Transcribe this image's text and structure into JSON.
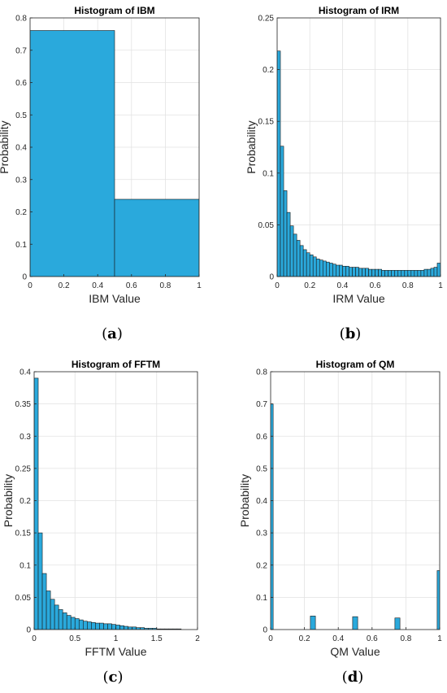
{
  "chart_data": [
    {
      "type": "bar",
      "title": "Histogram of IBM",
      "xlabel": "IBM Value",
      "ylabel": "Probability",
      "xlim": [
        0,
        1
      ],
      "ylim": [
        0,
        0.8
      ],
      "xticks": [
        "0",
        "0.2",
        "0.4",
        "0.6",
        "0.8",
        "1"
      ],
      "yticks": [
        "0",
        "0.1",
        "0.2",
        "0.3",
        "0.4",
        "0.5",
        "0.6",
        "0.7",
        "0.8"
      ],
      "grid": true,
      "bin_edges": [
        0,
        0.5,
        1
      ],
      "values": [
        0.761,
        0.239
      ],
      "caption": "a"
    },
    {
      "type": "bar",
      "title": "Histogram of IRM",
      "xlabel": "IRM Value",
      "ylabel": "Probability",
      "xlim": [
        0,
        1
      ],
      "ylim": [
        0,
        0.25
      ],
      "xticks": [
        "0",
        "0.2",
        "0.4",
        "0.6",
        "0.8",
        "1"
      ],
      "yticks": [
        "0",
        "0.05",
        "0.1",
        "0.15",
        "0.2",
        "0.25"
      ],
      "grid": true,
      "bin_width": 0.02,
      "values": [
        0.218,
        0.126,
        0.083,
        0.062,
        0.049,
        0.041,
        0.035,
        0.03,
        0.026,
        0.023,
        0.021,
        0.019,
        0.017,
        0.016,
        0.015,
        0.014,
        0.013,
        0.012,
        0.011,
        0.011,
        0.01,
        0.01,
        0.009,
        0.009,
        0.009,
        0.008,
        0.008,
        0.008,
        0.007,
        0.007,
        0.007,
        0.007,
        0.006,
        0.006,
        0.006,
        0.006,
        0.006,
        0.006,
        0.006,
        0.006,
        0.006,
        0.006,
        0.006,
        0.006,
        0.006,
        0.007,
        0.007,
        0.008,
        0.009,
        0.013
      ],
      "caption": "b"
    },
    {
      "type": "bar",
      "title": "Histogram of FFTM",
      "xlabel": "FFTM Value",
      "ylabel": "Probability",
      "xlim": [
        0,
        2
      ],
      "ylim": [
        0,
        0.4
      ],
      "xticks": [
        "0",
        "0.5",
        "1",
        "1.5",
        "2"
      ],
      "yticks": [
        "0",
        "0.05",
        "0.1",
        "0.15",
        "0.2",
        "0.25",
        "0.3",
        "0.35",
        "0.4"
      ],
      "grid": true,
      "bin_width": 0.05,
      "values": [
        0.39,
        0.15,
        0.087,
        0.06,
        0.047,
        0.038,
        0.031,
        0.026,
        0.022,
        0.019,
        0.017,
        0.015,
        0.013,
        0.012,
        0.011,
        0.01,
        0.01,
        0.009,
        0.009,
        0.008,
        0.007,
        0.006,
        0.005,
        0.004,
        0.004,
        0.003,
        0.003,
        0.002,
        0.002,
        0.002,
        0.001,
        0.001,
        0.001,
        0.001,
        0.001,
        0.001
      ],
      "caption": "c"
    },
    {
      "type": "bar",
      "title": "Histogram of QM",
      "xlabel": "QM Value",
      "ylabel": "Probability",
      "xlim": [
        0,
        1
      ],
      "ylim": [
        0,
        0.8
      ],
      "xticks": [
        "0",
        "0.2",
        "0.4",
        "0.6",
        "0.8",
        "1"
      ],
      "yticks": [
        "0",
        "0.1",
        "0.2",
        "0.3",
        "0.4",
        "0.5",
        "0.6",
        "0.7",
        "0.8"
      ],
      "grid": true,
      "bar_centers": [
        0,
        0.25,
        0.5,
        0.75,
        1
      ],
      "bar_width": 0.03,
      "values": [
        0.7,
        0.042,
        0.04,
        0.036,
        0.183
      ],
      "caption": "d"
    }
  ]
}
